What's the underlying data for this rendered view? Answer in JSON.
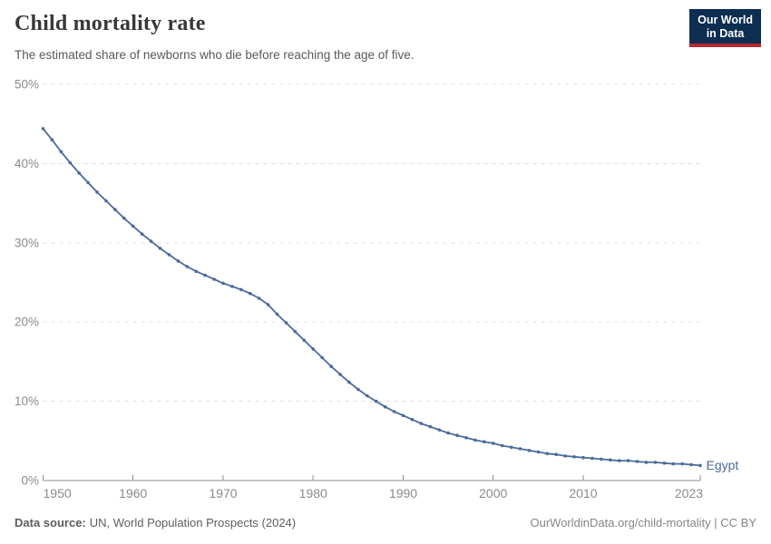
{
  "header": {
    "title": "Child mortality rate",
    "subtitle": "The estimated share of newborns who die before reaching the age of five.",
    "logo": {
      "line1": "Our World",
      "line2": "in Data"
    }
  },
  "footer": {
    "source_label": "Data source:",
    "source_text": "UN, World Population Prospects (2024)",
    "credit": "OurWorldinData.org/child-mortality | CC BY"
  },
  "colors": {
    "line": "#4C6A9C",
    "grid": "#dedede",
    "axis": "#8f8f8f",
    "tick_label": "#8b8b8b",
    "series_label": "#4C6A9C",
    "title": "#383838",
    "subtitle": "#595959",
    "logo_bg": "#0d2d51",
    "logo_red": "#b5282f"
  },
  "chart_data": {
    "type": "line",
    "title": "Child mortality rate",
    "subtitle": "The estimated share of newborns who die before reaching the age of five.",
    "xlabel": "",
    "ylabel": "",
    "xlim": [
      1950,
      2023
    ],
    "ylim": [
      0,
      50
    ],
    "grid": "horizontal-dashed",
    "legend": "end-of-line-label",
    "x_ticks": [
      {
        "value": 1950,
        "label": "1950"
      },
      {
        "value": 1960,
        "label": "1960"
      },
      {
        "value": 1970,
        "label": "1970"
      },
      {
        "value": 1980,
        "label": "1980"
      },
      {
        "value": 1990,
        "label": "1990"
      },
      {
        "value": 2000,
        "label": "2000"
      },
      {
        "value": 2010,
        "label": "2010"
      },
      {
        "value": 2023,
        "label": "2023"
      }
    ],
    "y_ticks": [
      {
        "value": 0,
        "label": "0%"
      },
      {
        "value": 10,
        "label": "10%"
      },
      {
        "value": 20,
        "label": "20%"
      },
      {
        "value": 30,
        "label": "30%"
      },
      {
        "value": 40,
        "label": "40%"
      },
      {
        "value": 50,
        "label": "50%"
      }
    ],
    "x": [
      1950,
      1951,
      1952,
      1953,
      1954,
      1955,
      1956,
      1957,
      1958,
      1959,
      1960,
      1961,
      1962,
      1963,
      1964,
      1965,
      1966,
      1967,
      1968,
      1969,
      1970,
      1971,
      1972,
      1973,
      1974,
      1975,
      1976,
      1977,
      1978,
      1979,
      1980,
      1981,
      1982,
      1983,
      1984,
      1985,
      1986,
      1987,
      1988,
      1989,
      1990,
      1991,
      1992,
      1993,
      1994,
      1995,
      1996,
      1997,
      1998,
      1999,
      2000,
      2001,
      2002,
      2003,
      2004,
      2005,
      2006,
      2007,
      2008,
      2009,
      2010,
      2011,
      2012,
      2013,
      2014,
      2015,
      2016,
      2017,
      2018,
      2019,
      2020,
      2021,
      2022,
      2023
    ],
    "series": [
      {
        "name": "Egypt",
        "unit": "%",
        "values": [
          44.4,
          43.0,
          41.5,
          40.1,
          38.8,
          37.6,
          36.4,
          35.3,
          34.2,
          33.1,
          32.1,
          31.1,
          30.2,
          29.3,
          28.5,
          27.7,
          27.0,
          26.4,
          25.9,
          25.4,
          24.9,
          24.5,
          24.1,
          23.6,
          23.0,
          22.2,
          21.0,
          19.9,
          18.8,
          17.7,
          16.6,
          15.5,
          14.4,
          13.4,
          12.4,
          11.5,
          10.7,
          10.0,
          9.3,
          8.7,
          8.2,
          7.7,
          7.2,
          6.8,
          6.4,
          6.0,
          5.7,
          5.4,
          5.1,
          4.9,
          4.7,
          4.4,
          4.2,
          4.0,
          3.8,
          3.6,
          3.4,
          3.3,
          3.1,
          3.0,
          2.9,
          2.8,
          2.7,
          2.6,
          2.5,
          2.5,
          2.4,
          2.3,
          2.3,
          2.2,
          2.1,
          2.1,
          2.0,
          1.9
        ]
      }
    ]
  }
}
